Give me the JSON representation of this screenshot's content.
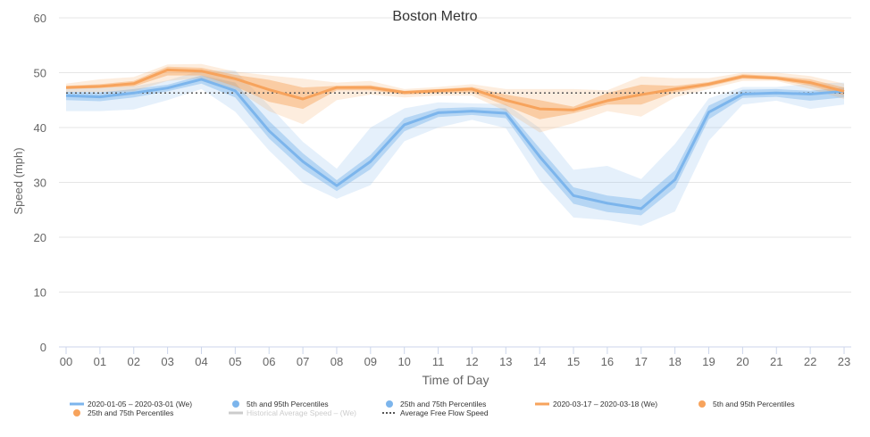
{
  "chart_data": {
    "type": "line",
    "title": "Boston Metro",
    "xlabel": "Time of Day",
    "ylabel": "Speed (mph)",
    "categories": [
      "00",
      "01",
      "02",
      "03",
      "04",
      "05",
      "06",
      "07",
      "08",
      "09",
      "10",
      "11",
      "12",
      "13",
      "14",
      "15",
      "16",
      "17",
      "18",
      "19",
      "20",
      "21",
      "22",
      "23"
    ],
    "yticks": [
      "0",
      "10",
      "20",
      "30",
      "40",
      "50",
      "60"
    ],
    "ylim": [
      0,
      60
    ],
    "grid": true,
    "legend_position": "bottom",
    "free_flow_speed": 46.3,
    "series": [
      {
        "name": "2020-01-05 – 2020-03-01 (We)",
        "color": "#7cb5ec",
        "values": [
          45.8,
          45.6,
          46.3,
          47.2,
          48.8,
          46.7,
          39.4,
          33.8,
          29.4,
          33.8,
          40.5,
          42.7,
          43.0,
          42.6,
          34.7,
          27.6,
          26.2,
          25.2,
          30.5,
          42.8,
          46.1,
          46.3,
          46.1,
          46.6
        ],
        "p25": [
          45.0,
          44.8,
          45.5,
          46.6,
          48.0,
          45.5,
          38.0,
          32.4,
          28.4,
          32.4,
          39.3,
          41.9,
          42.3,
          41.7,
          33.2,
          26.1,
          24.6,
          24.0,
          29.0,
          41.5,
          45.4,
          45.6,
          44.9,
          45.5
        ],
        "p75": [
          46.5,
          46.4,
          47.0,
          47.8,
          49.5,
          48.2,
          41.2,
          35.3,
          30.4,
          35.0,
          41.7,
          43.5,
          43.7,
          43.5,
          36.2,
          29.1,
          27.6,
          26.9,
          32.2,
          44.0,
          46.9,
          47.0,
          46.7,
          47.3
        ],
        "p5": [
          43.0,
          43.0,
          43.3,
          45.0,
          47.0,
          42.9,
          35.8,
          29.9,
          27.0,
          29.5,
          37.5,
          40.0,
          41.4,
          39.9,
          30.4,
          23.6,
          23.1,
          22.1,
          24.7,
          37.6,
          44.2,
          44.9,
          43.4,
          44.2
        ],
        "p95": [
          47.5,
          47.2,
          47.5,
          48.6,
          50.4,
          50.4,
          44.0,
          37.4,
          32.5,
          40.0,
          43.5,
          44.6,
          44.4,
          44.3,
          39.9,
          32.3,
          33.0,
          30.6,
          37.0,
          45.3,
          47.4,
          47.4,
          48.0,
          48.2
        ]
      },
      {
        "name": "2020-03-17 – 2020-03-18 (We)",
        "color": "#f7a35c",
        "values": [
          47.3,
          47.5,
          48.0,
          50.5,
          50.3,
          48.9,
          46.9,
          45.2,
          47.3,
          47.3,
          46.4,
          46.7,
          47.0,
          45.0,
          43.4,
          43.2,
          44.9,
          46.0,
          47.0,
          47.9,
          49.3,
          49.0,
          48.2,
          46.6
        ],
        "p25": [
          47.0,
          47.2,
          47.5,
          49.5,
          49.5,
          47.5,
          44.7,
          43.4,
          46.8,
          46.8,
          46.0,
          46.3,
          46.4,
          44.0,
          41.5,
          42.6,
          44.2,
          44.2,
          46.4,
          47.5,
          48.9,
          48.7,
          47.6,
          45.9
        ],
        "p75": [
          47.6,
          47.9,
          48.5,
          51.1,
          50.9,
          49.6,
          48.7,
          47.3,
          47.6,
          47.7,
          46.7,
          47.0,
          47.4,
          46.0,
          45.0,
          43.8,
          46.3,
          47.8,
          47.6,
          48.3,
          49.7,
          49.4,
          48.8,
          47.3
        ],
        "p5": [
          46.5,
          46.5,
          46.6,
          48.5,
          49.0,
          47.0,
          43.0,
          40.6,
          45.0,
          46.0,
          45.5,
          45.8,
          45.8,
          43.0,
          39.1,
          40.8,
          43.0,
          42.0,
          45.5,
          47.0,
          48.5,
          48.5,
          47.0,
          45.2
        ],
        "p95": [
          48.0,
          48.8,
          49.2,
          51.5,
          51.6,
          50.2,
          49.5,
          48.9,
          48.2,
          48.5,
          47.0,
          47.4,
          47.9,
          47.0,
          47.0,
          47.0,
          46.8,
          49.3,
          49.0,
          49.0,
          50.0,
          50.0,
          49.4,
          48.0
        ]
      }
    ],
    "legend": [
      {
        "label": "2020-01-05 – 2020-03-01 (We)",
        "symbol": "line",
        "color": "#7cb5ec",
        "dimmed": false
      },
      {
        "label": "5th and 95th Percentiles",
        "symbol": "dot",
        "color": "#7cb5ec",
        "dimmed": false
      },
      {
        "label": "25th and 75th Percentiles",
        "symbol": "dot",
        "color": "#7cb5ec",
        "dimmed": false
      },
      {
        "label": "2020-03-17 – 2020-03-18 (We)",
        "symbol": "line",
        "color": "#f7a35c",
        "dimmed": false
      },
      {
        "label": "5th and 95th Percentiles",
        "symbol": "dot",
        "color": "#f7a35c",
        "dimmed": false
      },
      {
        "label": "25th and 75th Percentiles",
        "symbol": "dot",
        "color": "#f7a35c",
        "dimmed": false
      },
      {
        "label": "Historical Average Speed – (We)",
        "symbol": "line",
        "color": "#cccccc",
        "dimmed": true
      },
      {
        "label": "Average Free Flow Speed",
        "symbol": "dotted",
        "color": "#555555",
        "dimmed": false
      }
    ]
  }
}
